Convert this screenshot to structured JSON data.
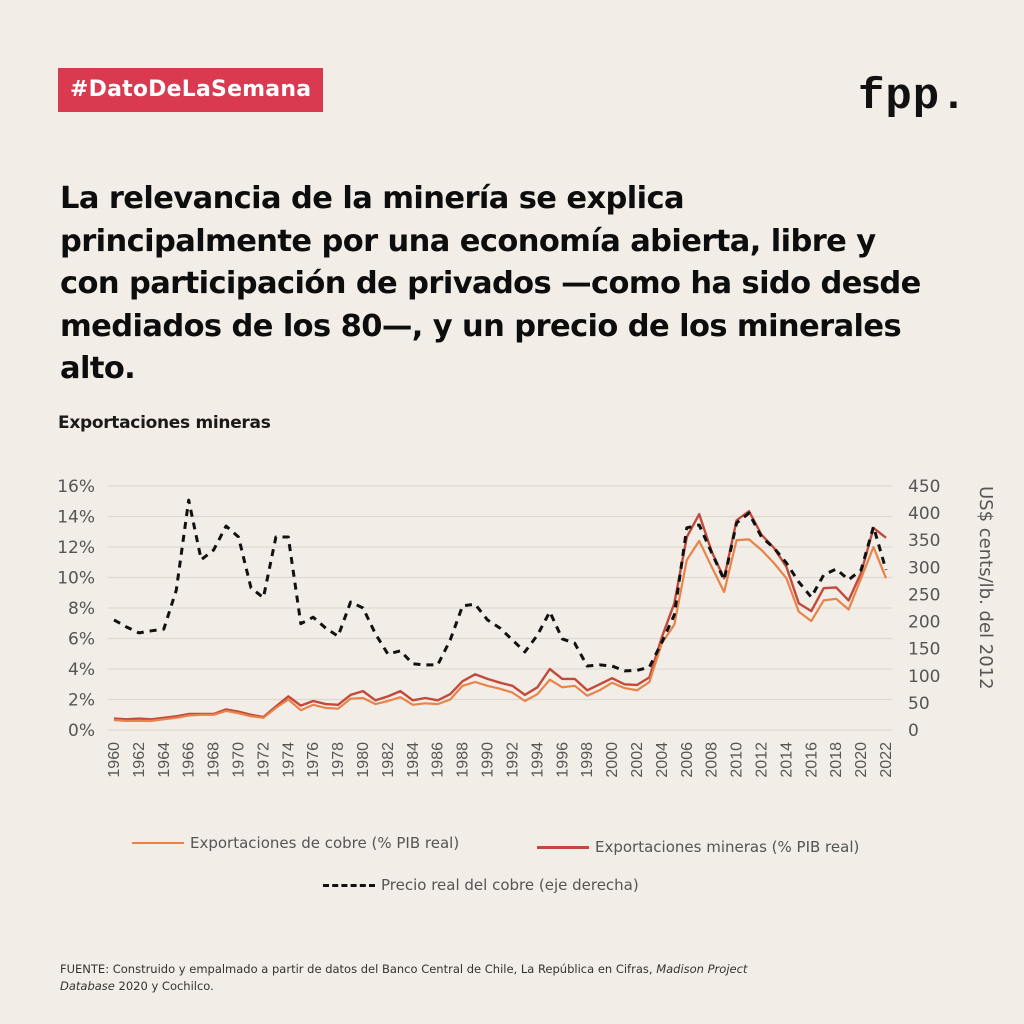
{
  "header": {
    "badge": "#DatoDeLaSemana",
    "logo": "fpp."
  },
  "headline": "La relevancia de la minería se explica principalmente por una economía abierta, libre y con participación de privados —como ha sido desde mediados de los 80—, y un precio de los minerales alto.",
  "source": {
    "prefix": "FUENTE: Construido y empalmado a partir de datos del Banco Central de Chile, La República en Cifras, ",
    "italic": "Madison Project Database",
    "suffix": " 2020 y Cochilco."
  },
  "colors": {
    "background": "#f2ede6",
    "badge": "#d93a50",
    "copper_exports": "#e8834a",
    "mining_exports": "#c24a3a",
    "copper_price": "#111111",
    "grid": "#dedad3"
  },
  "chart_data": {
    "type": "line",
    "title": "Exportaciones mineras",
    "xlabel": "",
    "ylabel_left": "",
    "ylabel_right": "US$ cents/lb. del 2012",
    "grid": true,
    "legend_position": "bottom",
    "x": [
      1960,
      1961,
      1962,
      1963,
      1964,
      1965,
      1966,
      1967,
      1968,
      1969,
      1970,
      1971,
      1972,
      1973,
      1974,
      1975,
      1976,
      1977,
      1978,
      1979,
      1980,
      1981,
      1982,
      1983,
      1984,
      1985,
      1986,
      1987,
      1988,
      1989,
      1990,
      1991,
      1992,
      1993,
      1994,
      1995,
      1996,
      1997,
      1998,
      1999,
      2000,
      2001,
      2002,
      2003,
      2004,
      2005,
      2006,
      2007,
      2008,
      2009,
      2010,
      2011,
      2012,
      2013,
      2014,
      2015,
      2016,
      2017,
      2018,
      2019,
      2020,
      2021,
      2022
    ],
    "x_tick_labels": [
      "1960",
      "1962",
      "1964",
      "1966",
      "1968",
      "1970",
      "1972",
      "1974",
      "1976",
      "1978",
      "1980",
      "1982",
      "1984",
      "1986",
      "1988",
      "1990",
      "1992",
      "1994",
      "1996",
      "1998",
      "2000",
      "2002",
      "2004",
      "2006",
      "2008",
      "2010",
      "2012",
      "2014",
      "2016",
      "2018",
      "2020",
      "2022"
    ],
    "ylim_left": [
      0,
      16
    ],
    "y_ticks_left": [
      "0%",
      "2%",
      "4%",
      "6%",
      "8%",
      "10%",
      "12%",
      "14%",
      "16%"
    ],
    "ylim_right": [
      0,
      450
    ],
    "y_ticks_right": [
      "0",
      "50",
      "100",
      "150",
      "200",
      "250",
      "300",
      "350",
      "400",
      "450"
    ],
    "series": [
      {
        "name": "Exportaciones de cobre (% PIB real)",
        "axis": "left",
        "style": "solid",
        "values": [
          0.65,
          0.6,
          0.6,
          0.6,
          0.7,
          0.8,
          0.95,
          1.0,
          1.0,
          1.25,
          1.1,
          0.9,
          0.8,
          1.45,
          2.0,
          1.3,
          1.65,
          1.45,
          1.4,
          2.05,
          2.1,
          1.7,
          1.9,
          2.15,
          1.65,
          1.75,
          1.7,
          2.0,
          2.9,
          3.15,
          2.9,
          2.7,
          2.45,
          1.9,
          2.35,
          3.3,
          2.8,
          2.9,
          2.25,
          2.6,
          3.1,
          2.75,
          2.6,
          3.15,
          5.7,
          6.9,
          11.15,
          12.4,
          10.7,
          9.05,
          12.45,
          12.5,
          11.8,
          10.95,
          9.95,
          7.75,
          7.15,
          8.5,
          8.6,
          7.9,
          9.95,
          12.0,
          9.95
        ]
      },
      {
        "name": "Exportaciones mineras (% PIB real)",
        "axis": "left",
        "style": "solid",
        "values": [
          0.75,
          0.7,
          0.75,
          0.7,
          0.8,
          0.9,
          1.05,
          1.05,
          1.05,
          1.35,
          1.2,
          1.0,
          0.85,
          1.55,
          2.2,
          1.6,
          1.9,
          1.7,
          1.65,
          2.3,
          2.55,
          1.95,
          2.2,
          2.55,
          1.95,
          2.1,
          1.95,
          2.35,
          3.2,
          3.65,
          3.35,
          3.1,
          2.9,
          2.3,
          2.8,
          4.0,
          3.35,
          3.35,
          2.6,
          3.0,
          3.4,
          3.0,
          2.95,
          3.45,
          6.1,
          8.3,
          12.65,
          14.15,
          11.7,
          9.95,
          13.75,
          14.35,
          12.8,
          11.95,
          10.7,
          8.3,
          7.8,
          9.3,
          9.35,
          8.5,
          10.3,
          13.25,
          12.6
        ]
      },
      {
        "name": "Precio real del cobre (eje derecha)",
        "axis": "right",
        "style": "dashed",
        "values": [
          203,
          190,
          179,
          183,
          186,
          258,
          424,
          314,
          332,
          376,
          356,
          262,
          244,
          356,
          356,
          196,
          208,
          188,
          173,
          236,
          225,
          177,
          140,
          146,
          122,
          120,
          120,
          166,
          229,
          232,
          203,
          188,
          166,
          144,
          175,
          218,
          168,
          160,
          118,
          120,
          118,
          109,
          110,
          116,
          162,
          212,
          373,
          378,
          327,
          277,
          382,
          400,
          356,
          336,
          308,
          273,
          245,
          286,
          297,
          277,
          295,
          375,
          295
        ]
      }
    ]
  }
}
